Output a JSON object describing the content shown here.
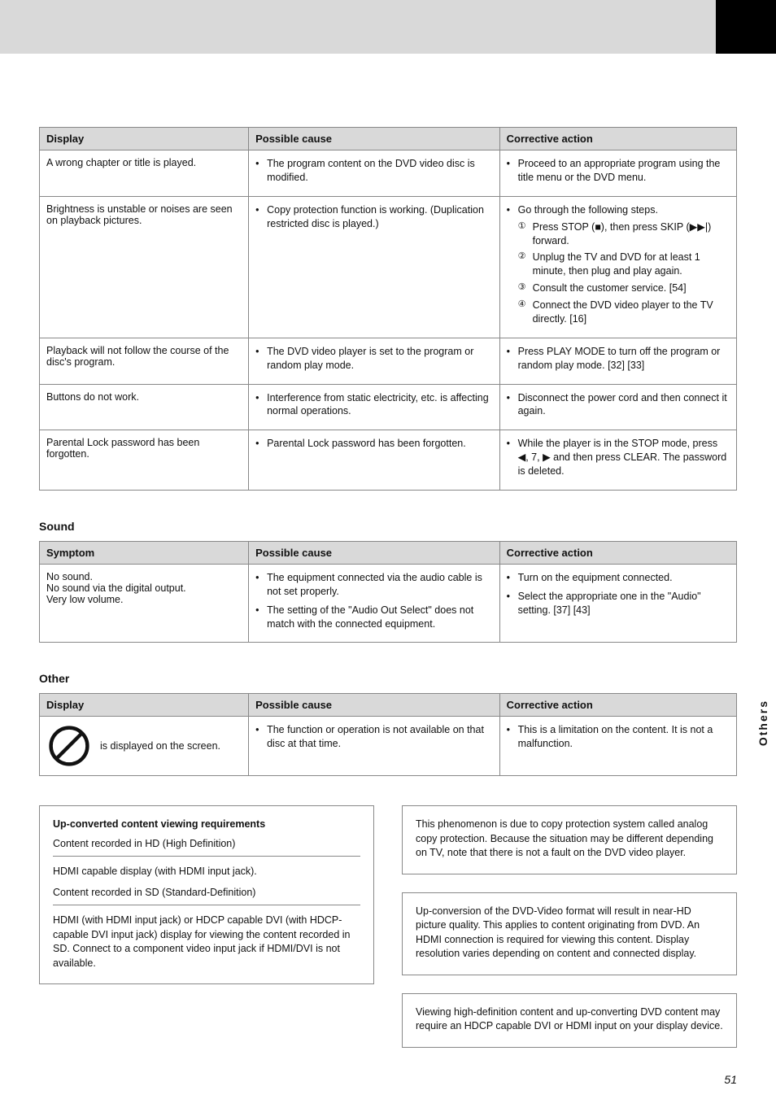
{
  "page_number_side": "Others",
  "page_number_bottom": "51",
  "colors": {
    "header_bg": "#d9d9d9",
    "border": "#888888",
    "black": "#000000",
    "text": "#111111"
  },
  "tableA": {
    "headers": [
      "Display",
      "Possible cause",
      "Corrective action"
    ],
    "rows": [
      [
        "A wrong chapter or title is played.",
        [
          "The program content on the DVD video disc is modified."
        ],
        [
          "Proceed to an appropriate program using the title menu or the DVD menu."
        ]
      ],
      [
        "Brightness is unstable or noises are seen on playback pictures.",
        [
          "Copy protection function is working. (Duplication restricted disc is played.)"
        ],
        [
          "__STEPS__"
        ]
      ],
      [
        "Playback will not follow the course of the disc's program.",
        [
          "The DVD video player is set to the program or random play mode."
        ],
        [
          "Press PLAY MODE to turn off the program or random play mode. [32] [33]"
        ]
      ],
      [
        "Buttons do not work.",
        [
          "Interference from static electricity, etc. is affecting normal operations."
        ],
        [
          "Disconnect the power cord and then connect it again."
        ]
      ],
      [
        "Parental Lock password has been forgotten.",
        [
          "Parental Lock password has been forgotten."
        ],
        [
          "While the player is in the STOP mode, press ◀, 7, ▶ and then press CLEAR. The password is deleted."
        ]
      ]
    ],
    "steps": [
      "Press STOP (■), then press SKIP (▶▶|) forward.",
      "Unplug the TV and DVD for at least 1 minute, then plug and play again.",
      "Consult the customer service. [54]",
      "Connect the DVD video player to the TV directly. [16]"
    ]
  },
  "tableB": {
    "title": "Sound",
    "headers": [
      "Symptom",
      "Possible cause",
      "Corrective action"
    ],
    "rows": [
      [
        "No sound.\nNo sound via the digital output.\nVery low volume.",
        [
          "The equipment connected via the audio cable is not set properly.",
          "The setting of the \"Audio Out Select\" does not match with the connected equipment."
        ],
        [
          "Turn on the equipment connected.",
          "Select the appropriate one in the \"Audio\" setting. [37] [43]"
        ]
      ]
    ]
  },
  "tableC": {
    "title": "Other",
    "headers": [
      "Display",
      "Possible cause",
      "Corrective action"
    ],
    "rows": [
      [
        {
          "icon": "prohibit",
          "label": "is displayed on the screen."
        },
        [
          "The function or operation is not available on that disc at that time."
        ],
        [
          "This is a limitation on the content. It is not a malfunction."
        ]
      ]
    ]
  },
  "boxes": {
    "left": [
      {
        "heading": "Up-converted content viewing requirements",
        "sub1": "Content recorded in HD (High Definition)",
        "body1": "HDMI capable display (with HDMI input jack).",
        "sub2": "Content recorded in SD (Standard-Definition)",
        "body2": "HDMI (with HDMI input jack) or HDCP capable DVI (with HDCP-capable DVI input jack) display for viewing the content recorded in SD. Connect to a component video input jack if HDMI/DVI is not available."
      }
    ],
    "right": [
      {
        "body": "This phenomenon is due to copy protection system called analog copy protection. Because the situation may be different depending on TV, note that there is not a fault on the DVD video player."
      },
      {
        "body": "Up-conversion of the DVD-Video format will result in near-HD picture quality. This applies to content originating from DVD. An HDMI connection is required for viewing this content. Display resolution varies depending on content and connected display."
      },
      {
        "body": "Viewing high-definition content and up-converting DVD content may require an HDCP capable DVI or HDMI input on your display device."
      }
    ]
  }
}
